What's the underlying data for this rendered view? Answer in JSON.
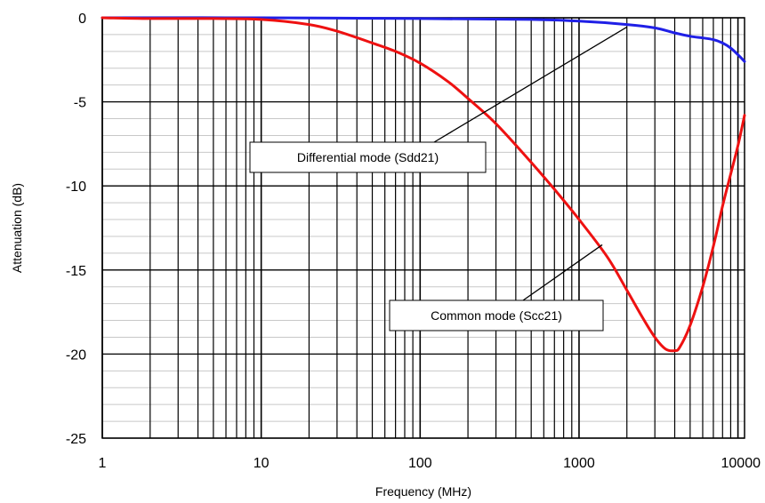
{
  "chart_data": {
    "type": "line",
    "xlabel": "Frequency (MHz)",
    "ylabel": "Attenuation (dB)",
    "x_scale": "log",
    "xlim": [
      1,
      11000
    ],
    "ylim": [
      -25,
      0
    ],
    "x_ticks": [
      1,
      10,
      100,
      1000,
      10000
    ],
    "x_tick_labels": [
      "1",
      "10",
      "100",
      "1000",
      "10000"
    ],
    "y_ticks": [
      0,
      -5,
      -10,
      -15,
      -20,
      -25
    ],
    "y_tick_labels": [
      "0",
      "-5",
      "-10",
      "-15",
      "-20",
      "-25"
    ],
    "grid": true,
    "series": [
      {
        "name": "Differential mode (Sdd21)",
        "color": "#1f1fe6",
        "x": [
          1,
          10,
          100,
          500,
          1000,
          2000,
          3000,
          4000,
          5000,
          6000,
          7000,
          8000,
          9000,
          10000,
          11000
        ],
        "y": [
          0,
          0,
          -0.05,
          -0.1,
          -0.2,
          -0.4,
          -0.6,
          -0.9,
          -1.1,
          -1.2,
          -1.3,
          -1.5,
          -1.8,
          -2.2,
          -2.6
        ]
      },
      {
        "name": "Common mode (Scc21)",
        "color": "#ee1111",
        "x": [
          1,
          2,
          5,
          10,
          20,
          30,
          50,
          70,
          100,
          150,
          200,
          300,
          500,
          700,
          1000,
          1500,
          2000,
          2500,
          3000,
          3500,
          4000,
          4300,
          5000,
          6000,
          7000,
          8000,
          9000,
          10000,
          11000
        ],
        "y": [
          0,
          -0.05,
          -0.05,
          -0.1,
          -0.4,
          -0.8,
          -1.5,
          -2.0,
          -2.7,
          -3.8,
          -4.8,
          -6.3,
          -8.6,
          -10.2,
          -12.0,
          -14.2,
          -16.2,
          -17.8,
          -19.0,
          -19.7,
          -19.8,
          -19.6,
          -18.3,
          -16.0,
          -13.6,
          -11.2,
          -9.3,
          -7.6,
          -5.8
        ]
      }
    ],
    "annotations": [
      {
        "text": "Differential mode (Sdd21)",
        "target": "Sdd21",
        "target_x": 2000,
        "target_y": -0.55
      },
      {
        "text": "Common mode (Scc21)",
        "target": "Scc21",
        "target_x": 1400,
        "target_y": -13.5
      }
    ]
  }
}
